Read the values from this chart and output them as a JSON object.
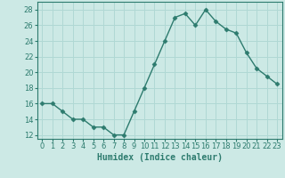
{
  "x": [
    0,
    1,
    2,
    3,
    4,
    5,
    6,
    7,
    8,
    9,
    10,
    11,
    12,
    13,
    14,
    15,
    16,
    17,
    18,
    19,
    20,
    21,
    22,
    23
  ],
  "y": [
    16,
    16,
    15,
    14,
    14,
    13,
    13,
    12,
    12,
    15,
    18,
    21,
    24,
    27,
    27.5,
    26,
    28,
    26.5,
    25.5,
    25,
    22.5,
    20.5,
    19.5,
    18.5
  ],
  "line_color": "#2d7b6e",
  "marker": "D",
  "marker_size": 2.5,
  "bg_color": "#cce9e5",
  "grid_color": "#b0d8d4",
  "xlabel": "Humidex (Indice chaleur)",
  "xlim": [
    -0.5,
    23.5
  ],
  "ylim": [
    11.5,
    29
  ],
  "yticks": [
    12,
    14,
    16,
    18,
    20,
    22,
    24,
    26,
    28
  ],
  "xticks": [
    0,
    1,
    2,
    3,
    4,
    5,
    6,
    7,
    8,
    9,
    10,
    11,
    12,
    13,
    14,
    15,
    16,
    17,
    18,
    19,
    20,
    21,
    22,
    23
  ],
  "xlabel_fontsize": 7,
  "tick_fontsize": 6,
  "line_width": 1.0
}
